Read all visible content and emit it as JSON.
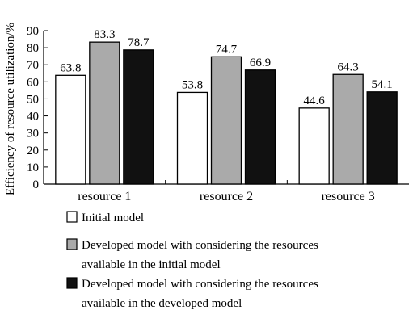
{
  "chart_data": {
    "type": "bar",
    "ylabel": "Efficiency of resource utilization/%",
    "xlabel": "",
    "ylim": [
      0,
      90
    ],
    "yticks": [
      0,
      10,
      20,
      30,
      40,
      50,
      60,
      70,
      80,
      90
    ],
    "categories": [
      "resource 1",
      "resource 2",
      "resource 3"
    ],
    "series": [
      {
        "name": "Initial model",
        "values": [
          63.8,
          53.8,
          44.6
        ],
        "color": "#ffffff"
      },
      {
        "name": "Developed model with considering the resources available in the initial model",
        "values": [
          83.3,
          74.7,
          64.3
        ],
        "color": "#aaaaaa"
      },
      {
        "name": "Developed model with considering the resources available in the developed model",
        "values": [
          78.7,
          66.9,
          54.1
        ],
        "color": "#111111"
      }
    ],
    "data_labels": [
      [
        "63.8",
        "53.8",
        "44.6"
      ],
      [
        "83.3",
        "74.7",
        "64.3"
      ],
      [
        "78.7",
        "66.9",
        "54.1"
      ]
    ],
    "legend": {
      "placement": "bottom",
      "lines": [
        [
          "Initial model"
        ],
        [
          "Developed model with considering the resources",
          "available in the initial model"
        ],
        [
          "Developed model with considering the resources",
          "available in the developed model"
        ]
      ]
    },
    "grid": false
  }
}
